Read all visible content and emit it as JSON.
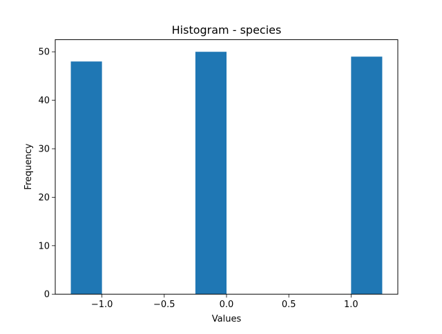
{
  "chart_data": {
    "type": "bar",
    "title": "Histogram - species",
    "xlabel": "Values",
    "ylabel": "Frequency",
    "xlim": [
      -1.375,
      1.375
    ],
    "ylim": [
      0,
      52.5
    ],
    "grid": false,
    "bin_width": 0.25,
    "bins": [
      {
        "start": -1.25,
        "end": -1.0,
        "count": 48
      },
      {
        "start": -1.0,
        "end": -0.75,
        "count": 0
      },
      {
        "start": -0.75,
        "end": -0.5,
        "count": 0
      },
      {
        "start": -0.5,
        "end": -0.25,
        "count": 0
      },
      {
        "start": -0.25,
        "end": 0.0,
        "count": 50
      },
      {
        "start": 0.0,
        "end": 0.25,
        "count": 0
      },
      {
        "start": 0.25,
        "end": 0.5,
        "count": 0
      },
      {
        "start": 0.5,
        "end": 0.75,
        "count": 0
      },
      {
        "start": 0.75,
        "end": 1.0,
        "count": 0
      },
      {
        "start": 1.0,
        "end": 1.25,
        "count": 49
      }
    ],
    "x_ticks": [
      {
        "value": -1.0,
        "label": "−1.0"
      },
      {
        "value": -0.5,
        "label": "−0.5"
      },
      {
        "value": 0.0,
        "label": "0.0"
      },
      {
        "value": 0.5,
        "label": "0.5"
      },
      {
        "value": 1.0,
        "label": "1.0"
      }
    ],
    "y_ticks": [
      {
        "value": 0,
        "label": "0"
      },
      {
        "value": 10,
        "label": "10"
      },
      {
        "value": 20,
        "label": "20"
      },
      {
        "value": 30,
        "label": "30"
      },
      {
        "value": 40,
        "label": "40"
      },
      {
        "value": 50,
        "label": "50"
      }
    ],
    "bar_color": "#1f77b4"
  }
}
